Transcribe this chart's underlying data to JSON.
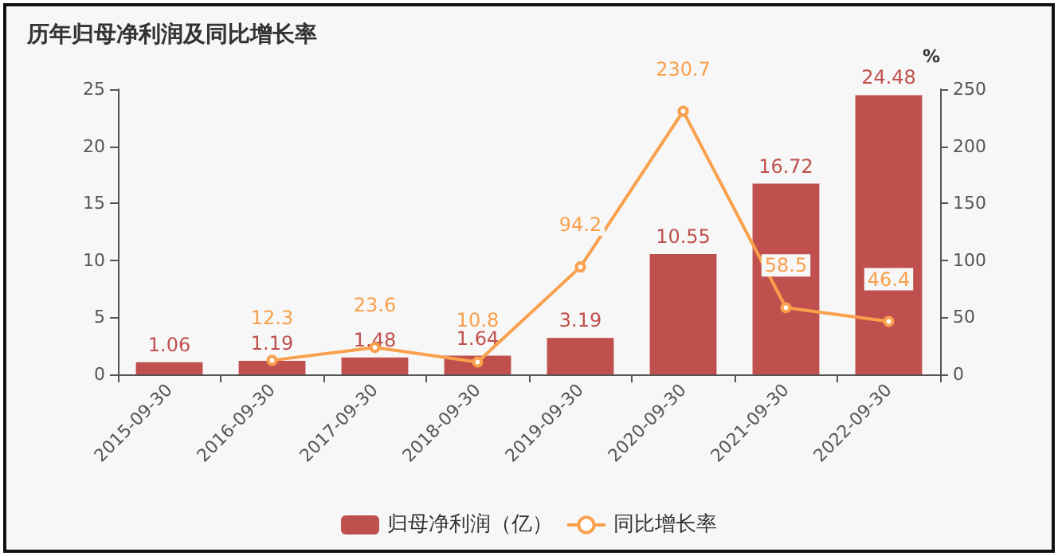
{
  "chart_data": {
    "type": "bar",
    "title": "历年归母净利润及同比增长率",
    "y2label": "%",
    "categories": [
      "2015-09-30",
      "2016-09-30",
      "2017-09-30",
      "2018-09-30",
      "2019-09-30",
      "2020-09-30",
      "2021-09-30",
      "2022-09-30"
    ],
    "series": [
      {
        "name": "归母净利润（亿）",
        "color": "#c0504d",
        "values": [
          1.06,
          1.19,
          1.48,
          1.64,
          3.19,
          10.55,
          16.72,
          24.48
        ]
      },
      {
        "name": "同比增长率",
        "type": "line",
        "axis": "y2",
        "color": "#f9a04c",
        "values": [
          null,
          12.3,
          23.6,
          10.8,
          94.2,
          230.7,
          58.5,
          46.4
        ]
      }
    ],
    "ylim": [
      0,
      25
    ],
    "yticks": [
      0,
      5,
      10,
      15,
      20,
      25
    ],
    "y2lim": [
      0,
      250
    ],
    "y2ticks": [
      0,
      50,
      100,
      150,
      200,
      250
    ],
    "data_labels": true,
    "grid": false,
    "legend": "bottom",
    "marker": "circle"
  }
}
